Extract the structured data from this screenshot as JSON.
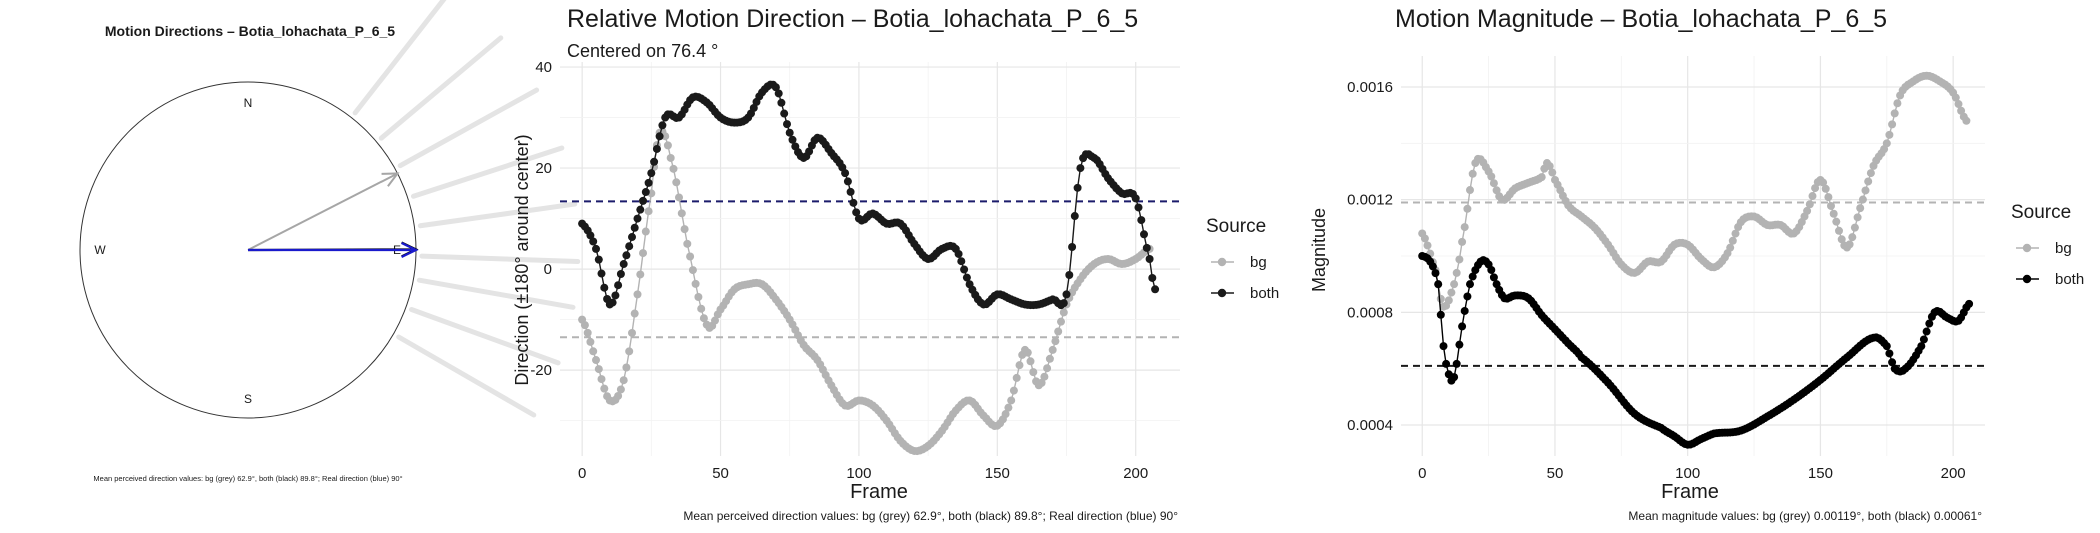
{
  "chart_data": [
    {
      "type": "polar-arrows",
      "title": "Motion Directions – Botia_lohachata_P_6_5",
      "compass": {
        "n": "N",
        "e": "E",
        "s": "S",
        "w": "W"
      },
      "caption": "Mean perceived direction values: bg (grey) 62.9°, both (black) 89.8°; Real direction (blue) 90°",
      "arrows": [
        {
          "name": "bg",
          "angle_deg": 62.9,
          "color": "#a6a6a6"
        },
        {
          "name": "both",
          "angle_deg": 89.8,
          "color": "#000000"
        },
        {
          "name": "real",
          "angle_deg": 90,
          "color": "#1a1acc"
        }
      ],
      "background_rays_deg": [
        38,
        50,
        61,
        72,
        82,
        92,
        100,
        110,
        120
      ]
    },
    {
      "type": "line",
      "title": "Relative Motion Direction – Botia_lohachata_P_6_5",
      "subtitle": "Centered on  76.4 °",
      "xlabel": "Frame",
      "ylabel": "Direction (±180° around center)",
      "xlim": [
        -8,
        216
      ],
      "ylim": [
        -37,
        41
      ],
      "xticks": [
        0,
        50,
        100,
        150,
        200
      ],
      "yticks": [
        -20,
        0,
        20,
        40
      ],
      "grid": true,
      "legend": {
        "title": "Source",
        "placement": "right",
        "items": [
          "bg",
          "both"
        ]
      },
      "hlines": [
        {
          "y": 13.4,
          "color": "#1b1b6b",
          "style": "dashed"
        },
        {
          "y": -13.5,
          "color": "#b3b3b3",
          "style": "dashed"
        }
      ],
      "series": [
        {
          "name": "bg",
          "color": "#b3b3b3",
          "knots": [
            [
              0,
              -10
            ],
            [
              5,
              -18
            ],
            [
              10,
              -26
            ],
            [
              15,
              -22
            ],
            [
              20,
              -5
            ],
            [
              25,
              15
            ],
            [
              28,
              27
            ],
            [
              32,
              22
            ],
            [
              38,
              5
            ],
            [
              45,
              -11
            ],
            [
              50,
              -8
            ],
            [
              55,
              -4
            ],
            [
              60,
              -3
            ],
            [
              65,
              -3
            ],
            [
              70,
              -6
            ],
            [
              75,
              -10
            ],
            [
              80,
              -15
            ],
            [
              85,
              -18
            ],
            [
              90,
              -23
            ],
            [
              95,
              -27
            ],
            [
              100,
              -26
            ],
            [
              105,
              -27
            ],
            [
              110,
              -30
            ],
            [
              115,
              -34
            ],
            [
              120,
              -36
            ],
            [
              125,
              -35
            ],
            [
              130,
              -32
            ],
            [
              135,
              -28
            ],
            [
              140,
              -26
            ],
            [
              145,
              -29
            ],
            [
              150,
              -31
            ],
            [
              155,
              -26
            ],
            [
              160,
              -16
            ],
            [
              165,
              -23
            ],
            [
              170,
              -16
            ],
            [
              175,
              -7
            ],
            [
              180,
              -2
            ],
            [
              185,
              1
            ],
            [
              190,
              2
            ],
            [
              195,
              1
            ],
            [
              200,
              2
            ],
            [
              205,
              4
            ]
          ]
        },
        {
          "name": "both",
          "color": "#1a1a1a",
          "knots": [
            [
              0,
              9
            ],
            [
              5,
              4
            ],
            [
              10,
              -7
            ],
            [
              15,
              1
            ],
            [
              20,
              10
            ],
            [
              25,
              19
            ],
            [
              30,
              30
            ],
            [
              35,
              30
            ],
            [
              40,
              34
            ],
            [
              45,
              33
            ],
            [
              50,
              30
            ],
            [
              55,
              29
            ],
            [
              60,
              30
            ],
            [
              65,
              35
            ],
            [
              70,
              36
            ],
            [
              75,
              27
            ],
            [
              80,
              22
            ],
            [
              85,
              26
            ],
            [
              90,
              23
            ],
            [
              95,
              19
            ],
            [
              100,
              10
            ],
            [
              105,
              11
            ],
            [
              110,
              9
            ],
            [
              115,
              9
            ],
            [
              120,
              5
            ],
            [
              125,
              2
            ],
            [
              130,
              4
            ],
            [
              135,
              4
            ],
            [
              140,
              -3
            ],
            [
              145,
              -7
            ],
            [
              150,
              -5
            ],
            [
              155,
              -6
            ],
            [
              160,
              -7
            ],
            [
              165,
              -7
            ],
            [
              170,
              -6
            ],
            [
              175,
              -5
            ],
            [
              180,
              20
            ],
            [
              185,
              22
            ],
            [
              190,
              18
            ],
            [
              195,
              15
            ],
            [
              200,
              14
            ],
            [
              205,
              2
            ],
            [
              207,
              -4
            ]
          ]
        }
      ],
      "caption": "Mean perceived direction values: bg (grey) 62.9°, both (black) 89.8°; Real direction (blue) 90°"
    },
    {
      "type": "line",
      "title": "Motion Magnitude – Botia_lohachata_P_6_5",
      "xlabel": "Frame",
      "ylabel": "Magnitude",
      "xlim": [
        -8,
        212
      ],
      "ylim": [
        0.00029,
        0.00171
      ],
      "xticks": [
        0,
        50,
        100,
        150,
        200
      ],
      "yticks": [
        0.0004,
        0.0008,
        0.0012,
        0.0016
      ],
      "ytick_labels": [
        "0.0004",
        "0.0008",
        "0.0012",
        "0.0016"
      ],
      "grid": true,
      "legend": {
        "title": "Source",
        "placement": "right",
        "items": [
          "bg",
          "both"
        ]
      },
      "hlines": [
        {
          "y": 0.00119,
          "color": "#b3b3b3",
          "style": "dashed"
        },
        {
          "y": 0.00061,
          "color": "#1a1a1a",
          "style": "dashed"
        }
      ],
      "series": [
        {
          "name": "bg",
          "color": "#b3b3b3",
          "knots": [
            [
              0,
              0.00108
            ],
            [
              5,
              0.00095
            ],
            [
              8,
              0.00082
            ],
            [
              12,
              0.0009
            ],
            [
              15,
              0.00105
            ],
            [
              20,
              0.00133
            ],
            [
              25,
              0.0013
            ],
            [
              30,
              0.0012
            ],
            [
              35,
              0.00124
            ],
            [
              40,
              0.00126
            ],
            [
              45,
              0.00128
            ],
            [
              47,
              0.00133
            ],
            [
              50,
              0.00127
            ],
            [
              55,
              0.00118
            ],
            [
              60,
              0.00114
            ],
            [
              65,
              0.0011
            ],
            [
              70,
              0.00104
            ],
            [
              75,
              0.00097
            ],
            [
              80,
              0.00094
            ],
            [
              85,
              0.00098
            ],
            [
              90,
              0.00098
            ],
            [
              95,
              0.00104
            ],
            [
              100,
              0.00104
            ],
            [
              105,
              0.00099
            ],
            [
              110,
              0.00096
            ],
            [
              115,
              0.00101
            ],
            [
              120,
              0.00112
            ],
            [
              125,
              0.00114
            ],
            [
              130,
              0.00111
            ],
            [
              135,
              0.00111
            ],
            [
              140,
              0.00108
            ],
            [
              145,
              0.00116
            ],
            [
              150,
              0.00127
            ],
            [
              155,
              0.00115
            ],
            [
              160,
              0.00103
            ],
            [
              165,
              0.00117
            ],
            [
              170,
              0.00132
            ],
            [
              175,
              0.0014
            ],
            [
              180,
              0.00157
            ],
            [
              185,
              0.00162
            ],
            [
              190,
              0.00164
            ],
            [
              195,
              0.00162
            ],
            [
              200,
              0.00158
            ],
            [
              205,
              0.00148
            ]
          ]
        },
        {
          "name": "both",
          "color": "#000000",
          "knots": [
            [
              0,
              0.001
            ],
            [
              3,
              0.00098
            ],
            [
              6,
              0.0009
            ],
            [
              8,
              0.00068
            ],
            [
              10,
              0.00058
            ],
            [
              12,
              0.00057
            ],
            [
              15,
              0.00075
            ],
            [
              18,
              0.0009
            ],
            [
              22,
              0.00098
            ],
            [
              25,
              0.00097
            ],
            [
              28,
              0.0009
            ],
            [
              31,
              0.00085
            ],
            [
              35,
              0.00086
            ],
            [
              40,
              0.00085
            ],
            [
              45,
              0.00079
            ],
            [
              50,
              0.00074
            ],
            [
              55,
              0.00069
            ],
            [
              60,
              0.00064
            ],
            [
              70,
              0.00055
            ],
            [
              80,
              0.00044
            ],
            [
              90,
              0.00039
            ],
            [
              95,
              0.00036
            ],
            [
              100,
              0.00033
            ],
            [
              105,
              0.00035
            ],
            [
              110,
              0.00037
            ],
            [
              120,
              0.00038
            ],
            [
              130,
              0.00043
            ],
            [
              140,
              0.00049
            ],
            [
              150,
              0.00056
            ],
            [
              160,
              0.00064
            ],
            [
              170,
              0.00071
            ],
            [
              175,
              0.00068
            ],
            [
              178,
              0.0006
            ],
            [
              182,
              0.0006
            ],
            [
              188,
              0.00068
            ],
            [
              193,
              0.0008
            ],
            [
              198,
              0.00078
            ],
            [
              202,
              0.00077
            ],
            [
              206,
              0.00083
            ]
          ]
        }
      ],
      "caption": "Mean magnitude values: bg (grey) 0.00119°, both (black) 0.00061°"
    }
  ]
}
